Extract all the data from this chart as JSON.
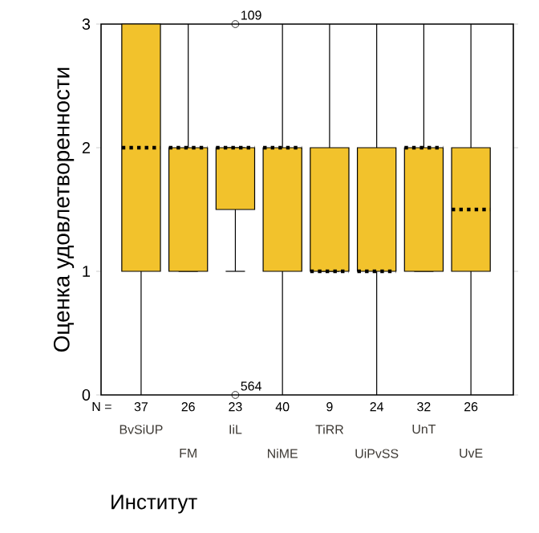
{
  "chart_data": {
    "type": "box",
    "xlabel": "Институт",
    "ylabel": "Оценка удовлетворенности",
    "color": "#f2c22c",
    "categories": [
      "BvSiUP",
      "FM",
      "IiL",
      "NiME",
      "TiRR",
      "UiPvSS",
      "UnT",
      "UvE"
    ],
    "boxes": [
      {
        "low": 0,
        "q1": 1,
        "median": 2,
        "q3": 3,
        "high": 3
      },
      {
        "low": 1,
        "q1": 1,
        "median": 2,
        "q3": 2,
        "high": 3
      },
      {
        "low": 1,
        "q1": 1.5,
        "median": 2,
        "q3": 2,
        "high": 2,
        "outliers": [
          3,
          0
        ]
      },
      {
        "low": 0,
        "q1": 1,
        "median": 2,
        "q3": 2,
        "high": 3
      },
      {
        "low": 1,
        "q1": 1,
        "median": 1,
        "q3": 2,
        "high": 3
      },
      {
        "low": 0,
        "q1": 1,
        "median": 1,
        "q3": 2,
        "high": 3
      },
      {
        "low": 1,
        "q1": 1,
        "median": 2,
        "q3": 2,
        "high": 3
      },
      {
        "low": 0,
        "q1": 1,
        "median": 1.5,
        "q3": 2,
        "high": 3
      }
    ],
    "ylim": [
      0,
      3
    ],
    "yticks": [
      0,
      1,
      2,
      3
    ],
    "annotations": [
      "N =",
      "37",
      "26",
      "23",
      "40",
      "9",
      "24",
      "32",
      "26",
      "109",
      "564"
    ]
  }
}
